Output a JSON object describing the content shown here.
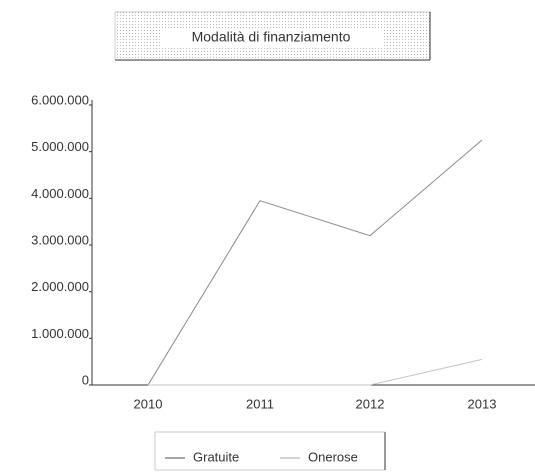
{
  "chart_data": {
    "type": "line",
    "title": "Modalità di finanziamento",
    "categories": [
      "2010",
      "2011",
      "2012",
      "2013"
    ],
    "series": [
      {
        "name": "Gratuite",
        "color": "#8a8a8a",
        "values": [
          0,
          3950000,
          3200000,
          5250000
        ]
      },
      {
        "name": "Onerose",
        "color": "#c4c4c4",
        "values": [
          0,
          0,
          0,
          550000
        ]
      }
    ],
    "ylim": [
      0,
      6000000
    ],
    "yticks": [
      0,
      {
        "value": 1000000,
        "label": "1.000.000"
      },
      {
        "value": 2000000,
        "label": "2.000.000"
      },
      {
        "value": 3000000,
        "label": "3.000.000"
      },
      {
        "value": 4000000,
        "label": "4.000.000"
      },
      {
        "value": 5000000,
        "label": "5.000.000"
      },
      {
        "value": 6000000,
        "label": "6.000.000"
      }
    ],
    "legend": "bottom"
  }
}
